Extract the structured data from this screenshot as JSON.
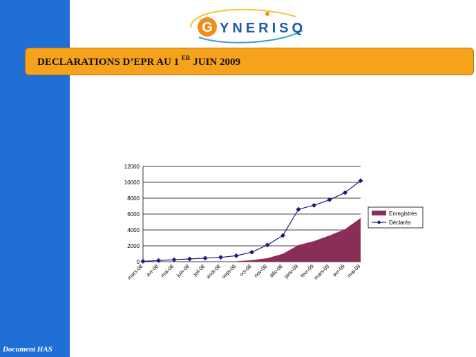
{
  "sidebar": {
    "footer": "Document HAS"
  },
  "logo": {
    "letter": "G",
    "text": "YNERISQ"
  },
  "header": {
    "title_prefix": "DECLARATIONS D’EPR AU 1 ",
    "title_sup": "ER",
    "title_suffix": " JUIN 2009"
  },
  "colors": {
    "sidebar": "#1f6fd6",
    "header": "#f7a21b",
    "area": "#8b2e57",
    "line": "#1a1a80"
  },
  "chart_data": {
    "type": "line",
    "categories": [
      "mars-08",
      "avr-08",
      "mai-08",
      "juin-08",
      "juil-08",
      "août-08",
      "sept-08",
      "oct-08",
      "nov-08",
      "déc-08",
      "janv-09",
      "févr-09",
      "mars-09",
      "avr-09",
      "mai-09"
    ],
    "series": [
      {
        "name": "Enregistrés",
        "type": "area",
        "values": [
          0,
          0,
          0,
          0,
          0,
          0,
          50,
          200,
          450,
          1000,
          2100,
          2600,
          3300,
          4100,
          5500
        ]
      },
      {
        "name": "Déclarés",
        "type": "line",
        "values": [
          50,
          150,
          250,
          350,
          450,
          550,
          750,
          1200,
          2100,
          3300,
          6600,
          7100,
          7800,
          8700,
          10200
        ]
      }
    ],
    "ylim": [
      0,
      12000
    ],
    "yticks": [
      "0",
      "2000",
      "4000",
      "6000",
      "8000",
      "10000",
      "12000"
    ],
    "grid": true,
    "legend": "right"
  }
}
